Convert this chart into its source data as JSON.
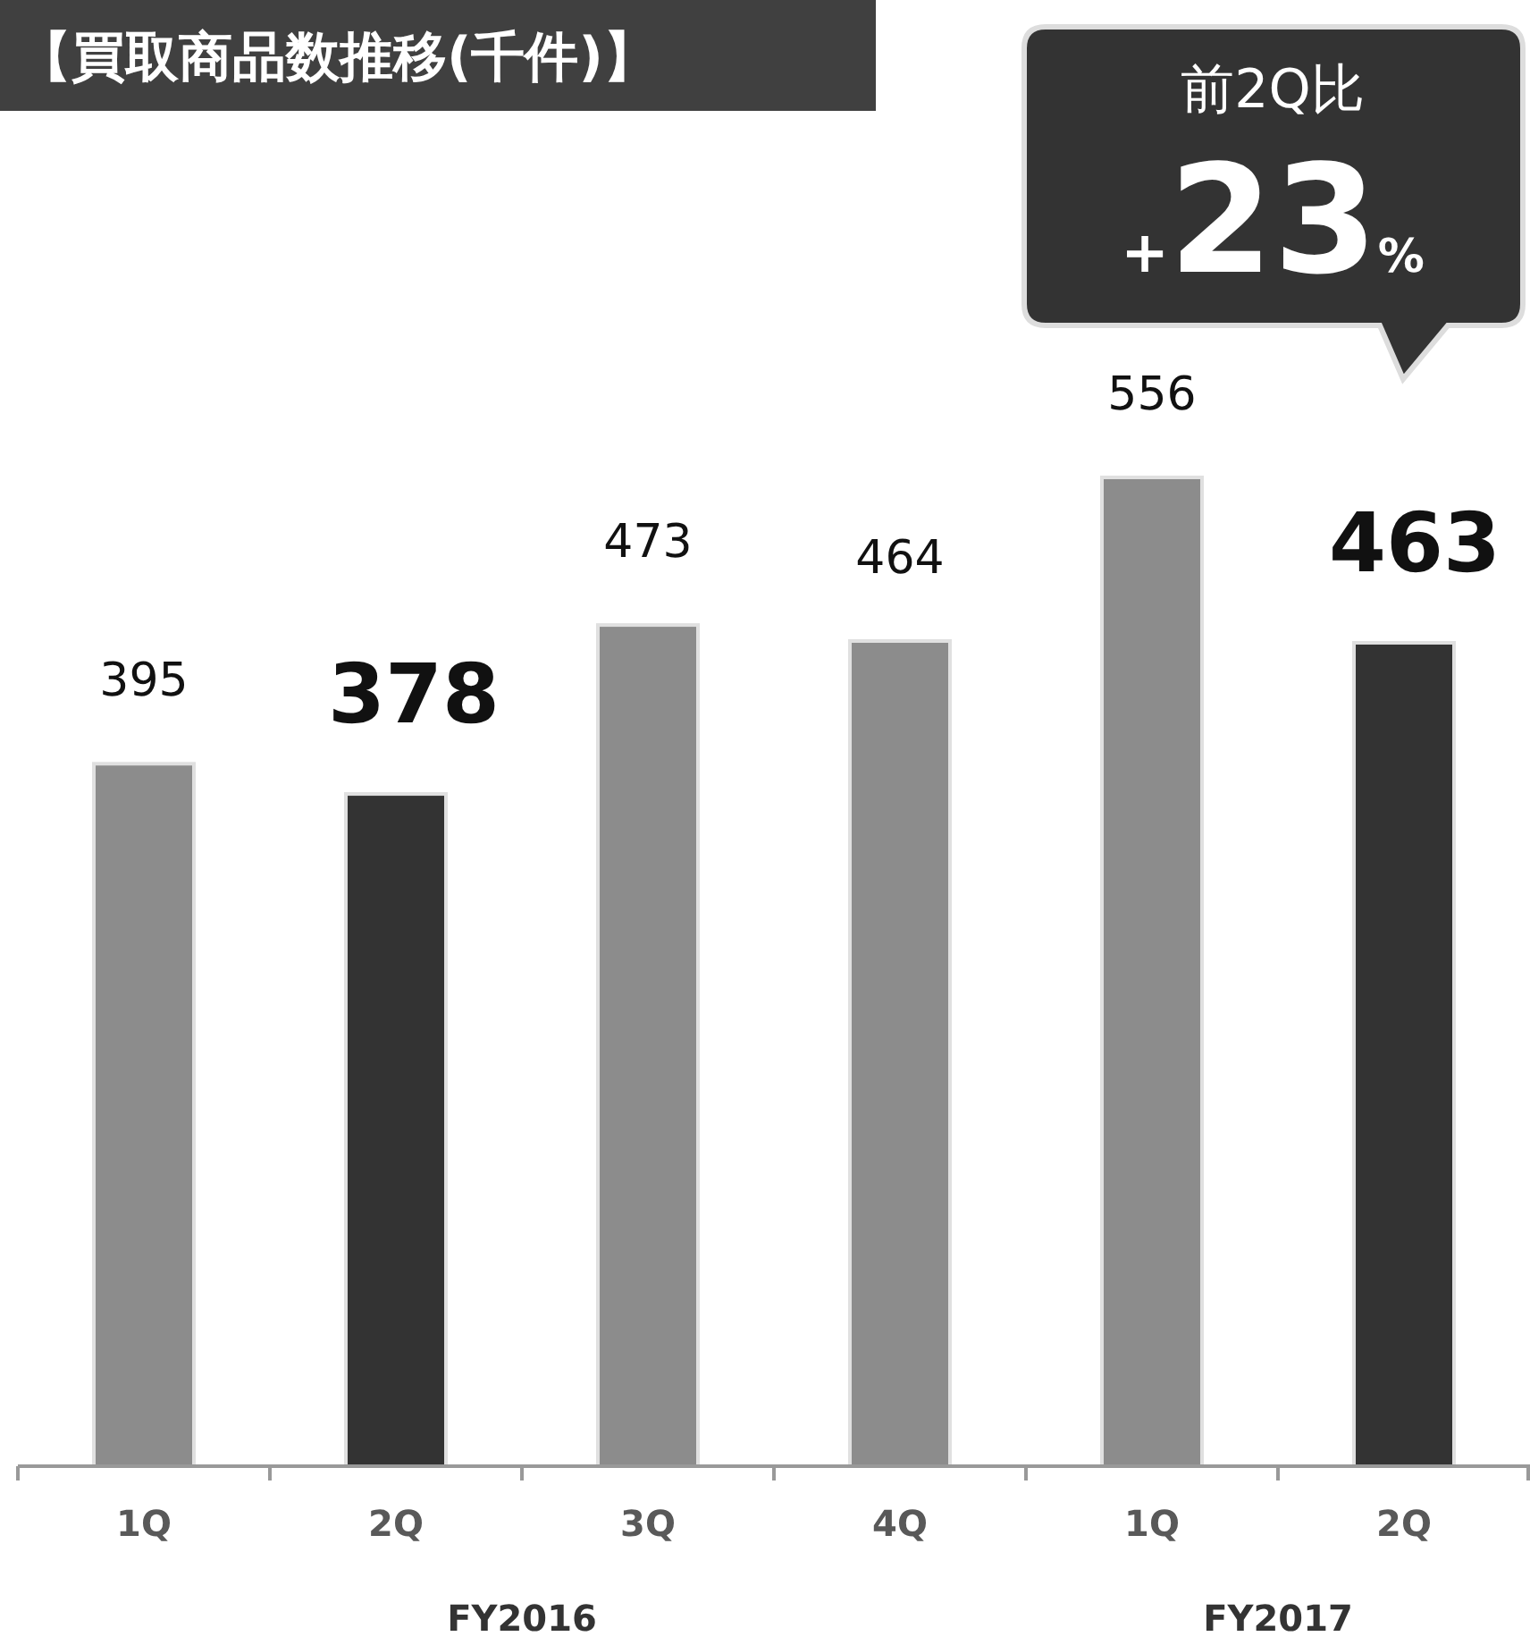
{
  "chart_data": {
    "type": "bar",
    "title": "【買取商品数推移(千件)】",
    "categories": [
      "1Q",
      "2Q",
      "3Q",
      "4Q",
      "1Q",
      "2Q"
    ],
    "values": [
      395,
      378,
      473,
      464,
      556,
      463
    ],
    "colors": [
      "#8c8c8c",
      "#333333",
      "#8c8c8c",
      "#8c8c8c",
      "#8c8c8c",
      "#333333"
    ],
    "value_labels": [
      "395",
      "**378**",
      "473",
      "464",
      "556",
      "**463**"
    ],
    "annotations": [
      "FY2016",
      "FY2017",
      "前2Q比",
      "+23%"
    ]
  }
}
